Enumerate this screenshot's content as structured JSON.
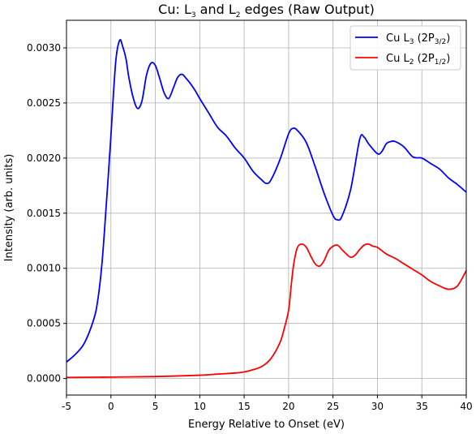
{
  "chart_data": {
    "type": "line",
    "title_parts": [
      "Cu: L",
      "3",
      " and L",
      "2",
      " edges (Raw Output)"
    ],
    "xlabel": "Energy Relative to Onset (eV)",
    "ylabel": "Intensity (arb. units)",
    "xlim": [
      -5,
      40
    ],
    "ylim": [
      -0.00015,
      0.00325
    ],
    "xticks": [
      -5,
      0,
      5,
      10,
      15,
      20,
      25,
      30,
      35,
      40
    ],
    "yticks": [
      0.0,
      0.0005,
      0.001,
      0.0015,
      0.002,
      0.0025,
      0.003
    ],
    "ytick_labels": [
      "0.0000",
      "0.0005",
      "0.0010",
      "0.0015",
      "0.0020",
      "0.0025",
      "0.0030"
    ],
    "grid": true,
    "legend_position": "top-right",
    "series": [
      {
        "name_parts": [
          "Cu L",
          "3",
          " (2P",
          "3/2",
          ")"
        ],
        "color": "#0000ff",
        "x": [
          -5,
          -4,
          -3,
          -2,
          -1.5,
          -1,
          -0.5,
          0,
          0.3,
          0.6,
          1,
          1.3,
          1.7,
          2,
          2.5,
          3,
          3.5,
          4,
          4.5,
          5,
          5.5,
          6,
          6.5,
          7,
          7.5,
          8,
          8.5,
          9,
          9.5,
          10,
          11,
          12,
          13,
          14,
          15,
          16,
          17,
          17.5,
          18,
          19,
          20,
          20.5,
          21,
          22,
          23,
          24,
          25,
          25.5,
          26,
          27,
          28,
          28.5,
          29,
          30,
          30.5,
          31,
          31.5,
          32,
          33,
          34,
          35,
          36,
          37,
          38,
          39,
          40
        ],
        "y": [
          0.00015,
          0.00022,
          0.00032,
          0.00052,
          0.0007,
          0.00105,
          0.0016,
          0.0022,
          0.0026,
          0.00292,
          0.00307,
          0.00302,
          0.0029,
          0.00274,
          0.00255,
          0.00245,
          0.00252,
          0.00275,
          0.00286,
          0.00284,
          0.00272,
          0.00259,
          0.00254,
          0.00263,
          0.00273,
          0.00276,
          0.00272,
          0.00267,
          0.00261,
          0.00254,
          0.00241,
          0.00228,
          0.0022,
          0.00209,
          0.002,
          0.00188,
          0.0018,
          0.00177,
          0.0018,
          0.00198,
          0.00222,
          0.00227,
          0.00225,
          0.00214,
          0.00192,
          0.00168,
          0.00148,
          0.00144,
          0.00147,
          0.00172,
          0.00217,
          0.00219,
          0.00213,
          0.00204,
          0.00206,
          0.00213,
          0.00215,
          0.00215,
          0.0021,
          0.00201,
          0.002,
          0.00195,
          0.0019,
          0.00182,
          0.00176,
          0.00169
        ]
      },
      {
        "name_parts": [
          "Cu L",
          "2",
          " (2P",
          "1/2",
          ")"
        ],
        "color": "#ff0000",
        "x": [
          -5,
          0,
          5,
          10,
          12,
          14,
          15,
          16,
          17,
          18,
          19,
          19.5,
          20,
          20.3,
          20.6,
          21,
          21.5,
          22,
          22.5,
          23,
          23.5,
          24,
          24.5,
          25,
          25.5,
          26,
          26.5,
          27,
          27.5,
          28,
          28.5,
          29,
          29.5,
          30,
          31,
          32,
          33,
          34,
          35,
          36,
          37,
          38,
          39,
          40
        ],
        "y": [
          1e-05,
          1.3e-05,
          1.8e-05,
          3e-05,
          4e-05,
          5e-05,
          6e-05,
          8e-05,
          0.00011,
          0.00018,
          0.00032,
          0.00045,
          0.00062,
          0.00085,
          0.00105,
          0.00119,
          0.00122,
          0.00119,
          0.00111,
          0.00104,
          0.00102,
          0.00107,
          0.00116,
          0.0012,
          0.00121,
          0.00117,
          0.00113,
          0.0011,
          0.00112,
          0.00117,
          0.00121,
          0.00122,
          0.0012,
          0.00119,
          0.00113,
          0.00109,
          0.00104,
          0.00099,
          0.00094,
          0.00088,
          0.00084,
          0.00081,
          0.00084,
          0.00098
        ]
      }
    ]
  }
}
